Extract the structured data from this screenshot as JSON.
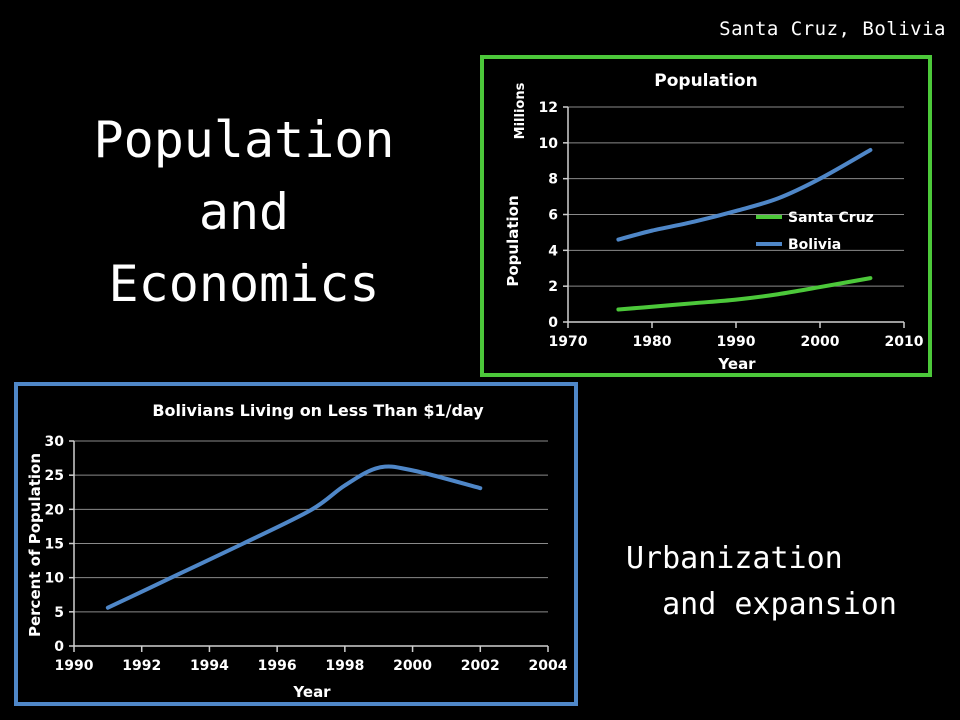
{
  "header": {
    "location": "Santa Cruz, Bolivia"
  },
  "main": {
    "title_lines": [
      "Population",
      "and",
      "Economics"
    ],
    "note": "Urbanization\n  and expansion"
  },
  "chart_data": [
    {
      "type": "line",
      "title": "Population",
      "xlabel": "Year",
      "ylabel": "Population",
      "yunit_label": "Millions",
      "xlim": [
        1970,
        2010
      ],
      "ylim": [
        0,
        12
      ],
      "xticks": [
        1970,
        1980,
        1990,
        2000,
        2010
      ],
      "yticks": [
        0,
        2,
        4,
        6,
        8,
        10,
        12
      ],
      "grid": true,
      "legend": "right",
      "series": [
        {
          "name": "Santa Cruz",
          "color": "#4cc83a",
          "x": [
            1976,
            1980,
            1985,
            1990,
            1995,
            2000,
            2006
          ],
          "y": [
            0.7,
            0.85,
            1.05,
            1.25,
            1.55,
            1.95,
            2.45
          ]
        },
        {
          "name": "Bolivia",
          "color": "#4f87c8",
          "x": [
            1976,
            1980,
            1985,
            1990,
            1995,
            2000,
            2006
          ],
          "y": [
            4.6,
            5.1,
            5.6,
            6.2,
            6.9,
            8.0,
            9.6
          ]
        }
      ]
    },
    {
      "type": "line",
      "title": "Bolivians Living on Less Than $1/day",
      "xlabel": "Year",
      "ylabel": "Percent of Population",
      "xlim": [
        1990,
        2004
      ],
      "ylim": [
        0,
        30
      ],
      "xticks": [
        1990,
        1992,
        1994,
        1996,
        1998,
        2000,
        2002,
        2004
      ],
      "yticks": [
        0,
        5,
        10,
        15,
        20,
        25,
        30
      ],
      "grid": true,
      "series": [
        {
          "color": "#4f87c8",
          "x": [
            1991,
            1993,
            1995,
            1997,
            1998,
            1999,
            2000,
            2002
          ],
          "y": [
            5.6,
            10.3,
            15.0,
            19.9,
            23.5,
            26.1,
            25.7,
            23.1
          ]
        }
      ]
    }
  ]
}
